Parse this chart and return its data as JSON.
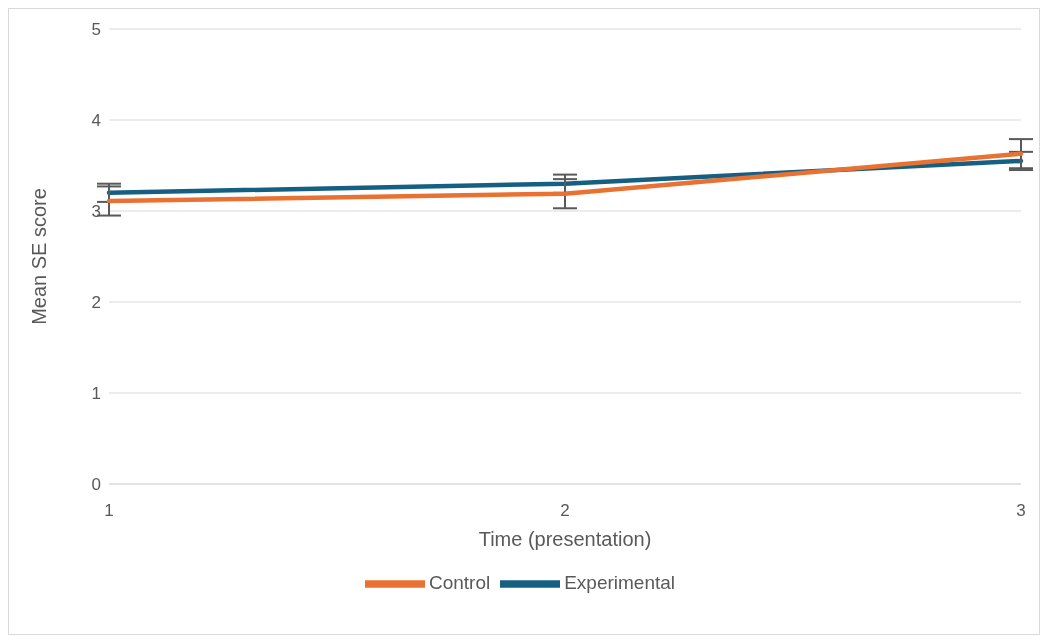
{
  "chart_data": {
    "type": "line",
    "xlabel": "Time (presentation)",
    "ylabel": "Mean SE score",
    "categories": [
      "1",
      "2",
      "3"
    ],
    "series": [
      {
        "name": "Experimental",
        "color": "#156082",
        "values": [
          3.2,
          3.3,
          3.55
        ],
        "errors": [
          0.1,
          0.1,
          0.1
        ]
      },
      {
        "name": "Control",
        "color": "#e97132",
        "values": [
          3.11,
          3.19,
          3.63
        ],
        "errors": [
          0.16,
          0.16,
          0.16
        ]
      }
    ],
    "ylim": [
      0,
      5
    ],
    "yticks": [
      0,
      1,
      2,
      3,
      4,
      5
    ],
    "grid": "y",
    "legend": "bottom",
    "marker": "none",
    "line_style": "solid"
  }
}
